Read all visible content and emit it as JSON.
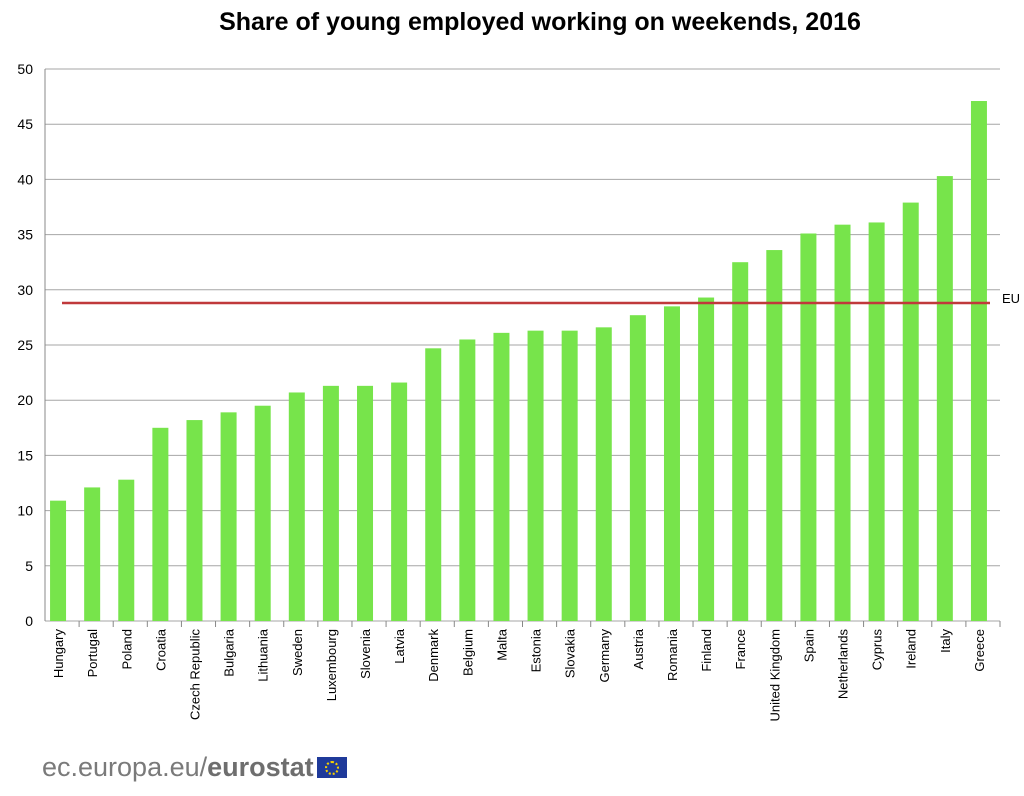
{
  "chart_data": {
    "type": "bar",
    "title": "Share of young employed working on weekends, 2016",
    "xlabel": "",
    "ylabel": "",
    "ylim": [
      0,
      50
    ],
    "yticks": [
      0,
      5,
      10,
      15,
      20,
      25,
      30,
      35,
      40,
      45,
      50
    ],
    "grid": true,
    "categories": [
      "Hungary",
      "Portugal",
      "Poland",
      "Croatia",
      "Czech Republic",
      "Bulgaria",
      "Lithuania",
      "Sweden",
      "Luxembourg",
      "Slovenia",
      "Latvia",
      "Denmark",
      "Belgium",
      "Malta",
      "Estonia",
      "Slovakia",
      "Germany",
      "Austria",
      "Romania",
      "Finland",
      "France",
      "United Kingdom",
      "Spain",
      "Netherlands",
      "Cyprus",
      "Ireland",
      "Italy",
      "Greece"
    ],
    "values": [
      10.9,
      12.1,
      12.8,
      17.5,
      18.2,
      18.9,
      19.5,
      20.7,
      21.3,
      21.3,
      21.6,
      24.7,
      25.5,
      26.1,
      26.3,
      26.3,
      26.6,
      27.7,
      28.5,
      29.3,
      32.5,
      33.6,
      35.1,
      35.9,
      36.1,
      37.9,
      40.3,
      47.1
    ],
    "reference_line": {
      "label": "EU",
      "value": 28.8
    },
    "colors": {
      "bar": "#77e44b",
      "reference": "#c0393b",
      "grid": "#a6a6a6"
    }
  },
  "footer": {
    "site": "ec.europa.eu/",
    "brand": "eurostat"
  }
}
